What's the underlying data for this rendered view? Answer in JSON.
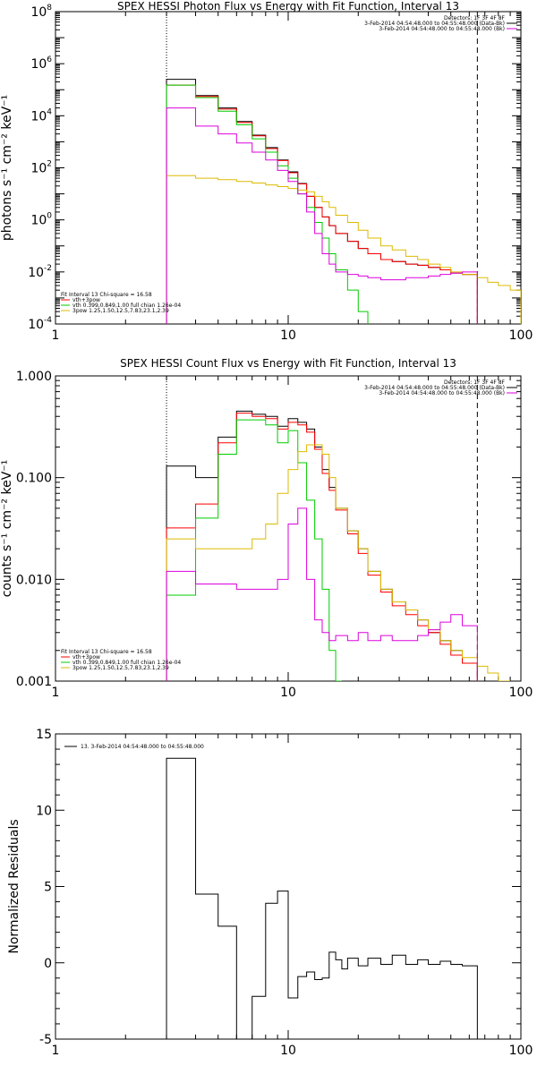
{
  "chart_data": [
    {
      "type": "line",
      "title": "SPEX HESSI Photon Flux vs Energy with Fit Function, Interval 13",
      "ylabel": "photons s⁻¹ cm⁻² keV⁻¹",
      "xscale": "log",
      "yscale": "log",
      "xlim": [
        1,
        100
      ],
      "ylim": [
        0.0001,
        100000000
      ],
      "xticks": [
        {
          "v": 1,
          "t": "1"
        },
        {
          "v": 10,
          "t": "10"
        },
        {
          "v": 100,
          "t": "100"
        }
      ],
      "yticks": [
        {
          "v": 0.0001,
          "b": "10",
          "e": "-4"
        },
        {
          "v": 0.01,
          "b": "10",
          "e": "-2"
        },
        {
          "v": 1,
          "b": "10",
          "e": "0"
        },
        {
          "v": 100,
          "b": "10",
          "e": "2"
        },
        {
          "v": 10000,
          "b": "10",
          "e": "4"
        },
        {
          "v": 1000000,
          "b": "10",
          "e": "6"
        },
        {
          "v": 100000000,
          "b": "10",
          "e": "8"
        }
      ],
      "dotted_x": 3,
      "dashed_x": 65,
      "legend_right": {
        "header": "Detectors: 1F 3F 4F 8F",
        "lines": [
          {
            "text": "3-Feb-2014 04:54:48.000 to 04:55:48.000 (Data-Bk)",
            "color": "#000000"
          },
          {
            "text": "3-Feb-2014 04:54:48.000 to 04:55:48.000 (Bk)",
            "color": "#dd00dd"
          }
        ]
      },
      "legend_left": {
        "header": "Fit Interval 13   Chi-square = 16.58",
        "lines": [
          {
            "text": "vth+3pow",
            "color": "#ff0000"
          },
          {
            "text": "vth 0.399,0.849,1.00  full chian 1.26e-04",
            "color": "#00cc00"
          },
          {
            "text": "3pow 1.25,1.50,12.5,7.83,23.1,2.39",
            "color": "#ddbb00"
          }
        ]
      },
      "series": [
        {
          "name": "Data-Bk",
          "color": "#000000",
          "edges": [
            3,
            4,
            5,
            6,
            7,
            8,
            9,
            10,
            11,
            12,
            13,
            14,
            15,
            16,
            18,
            20,
            22,
            25,
            28,
            32,
            36,
            40,
            45,
            50,
            56,
            65
          ],
          "values": [
            250000,
            60000,
            20000,
            6000,
            1800,
            600,
            200,
            70,
            25,
            8,
            3,
            1.3,
            0.6,
            0.3,
            0.15,
            0.08,
            0.05,
            0.03,
            0.025,
            0.02,
            0.018,
            0.015,
            0.012,
            0.009,
            0.008
          ]
        },
        {
          "name": "vth+3pow",
          "color": "#ff0000",
          "edges": [
            3,
            4,
            5,
            6,
            7,
            8,
            9,
            10,
            11,
            12,
            13,
            14,
            15,
            16,
            18,
            20,
            22,
            25,
            28,
            32,
            36,
            40,
            45,
            50,
            56,
            65
          ],
          "values": [
            150000,
            55000,
            18000,
            5500,
            1700,
            550,
            190,
            65,
            24,
            8,
            3,
            1.3,
            0.6,
            0.3,
            0.15,
            0.08,
            0.05,
            0.03,
            0.025,
            0.02,
            0.018,
            0.015,
            0.012,
            0.009,
            0.008
          ]
        },
        {
          "name": "vth",
          "color": "#00cc00",
          "edges": [
            3,
            4,
            5,
            6,
            7,
            8,
            9,
            10,
            11,
            12,
            13,
            14,
            15,
            16,
            18,
            20,
            22
          ],
          "values": [
            150000,
            50000,
            15000,
            4500,
            1300,
            400,
            120,
            40,
            10,
            3,
            0.8,
            0.2,
            0.05,
            0.012,
            0.002,
            0.0003
          ]
        },
        {
          "name": "3pow",
          "color": "#ddbb00",
          "edges": [
            3,
            4,
            5,
            6,
            7,
            8,
            9,
            10,
            11,
            12,
            13,
            14,
            15,
            16,
            18,
            20,
            22,
            25,
            28,
            32,
            36,
            40,
            45,
            50,
            56,
            65,
            72,
            80,
            90,
            100
          ],
          "values": [
            50,
            40,
            35,
            30,
            26,
            22,
            19,
            16,
            14,
            12,
            8,
            5,
            3,
            1.5,
            0.8,
            0.4,
            0.2,
            0.1,
            0.07,
            0.04,
            0.03,
            0.02,
            0.015,
            0.01,
            0.008,
            0.006,
            0.004,
            0.003,
            0.002
          ]
        },
        {
          "name": "Bk",
          "color": "#dd00dd",
          "edges": [
            3,
            4,
            5,
            6,
            7,
            8,
            9,
            10,
            11,
            12,
            13,
            14,
            15,
            16,
            18,
            20,
            22,
            25,
            28,
            32,
            36,
            40,
            45,
            50,
            56,
            65
          ],
          "values": [
            20000,
            4000,
            2000,
            900,
            400,
            200,
            80,
            30,
            10,
            2,
            0.3,
            0.05,
            0.02,
            0.01,
            0.008,
            0.007,
            0.006,
            0.005,
            0.005,
            0.006,
            0.006,
            0.007,
            0.008,
            0.009,
            0.01
          ]
        }
      ]
    },
    {
      "type": "line",
      "title": "SPEX HESSI Count Flux vs Energy with Fit Function, Interval 13",
      "ylabel": "counts s⁻¹ cm⁻² keV⁻¹",
      "xscale": "log",
      "yscale": "log",
      "xlim": [
        1,
        100
      ],
      "ylim": [
        0.001,
        1
      ],
      "xticks": [
        {
          "v": 1,
          "t": "1"
        },
        {
          "v": 10,
          "t": "10"
        },
        {
          "v": 100,
          "t": "100"
        }
      ],
      "yticks": [
        {
          "v": 0.001,
          "t": "0.001"
        },
        {
          "v": 0.01,
          "t": "0.010"
        },
        {
          "v": 0.1,
          "t": "0.100"
        },
        {
          "v": 1,
          "t": "1.000"
        }
      ],
      "dotted_x": 3,
      "dashed_x": 65,
      "legend_right": {
        "header": "Detectors: 1F 3F 4F 8F",
        "lines": [
          {
            "text": "3-Feb-2014 04:54:48.000 to 04:55:48.000 (Data-Bk)",
            "color": "#000000"
          },
          {
            "text": "3-Feb-2014 04:54:48.000 to 04:55:48.000 (Bk)",
            "color": "#dd00dd"
          }
        ]
      },
      "legend_left": {
        "header": "Fit Interval 13   Chi-square = 16.58",
        "lines": [
          {
            "text": "vth+3pow",
            "color": "#ff0000"
          },
          {
            "text": "vth 0.399,0.849,1.00  full chian 1.26e-04",
            "color": "#00cc00"
          },
          {
            "text": "3pow 1.25,1.50,12.5,7.83,23.1,2.39",
            "color": "#ddbb00"
          }
        ]
      },
      "series": [
        {
          "name": "Data-Bk",
          "color": "#000000",
          "edges": [
            3,
            4,
            5,
            6,
            7,
            8,
            9,
            10,
            11,
            12,
            13,
            14,
            15,
            16,
            18,
            20,
            22,
            25,
            28,
            32,
            36,
            40,
            45,
            50,
            56,
            65
          ],
          "values": [
            0.13,
            0.1,
            0.25,
            0.45,
            0.42,
            0.4,
            0.32,
            0.38,
            0.35,
            0.3,
            0.2,
            0.12,
            0.08,
            0.05,
            0.03,
            0.02,
            0.012,
            0.008,
            0.006,
            0.005,
            0.004,
            0.003,
            0.0025,
            0.002,
            0.0015
          ]
        },
        {
          "name": "vth+3pow",
          "color": "#ff0000",
          "edges": [
            3,
            4,
            5,
            6,
            7,
            8,
            9,
            10,
            11,
            12,
            13,
            14,
            15,
            16,
            18,
            20,
            22,
            25,
            28,
            32,
            36,
            40,
            45,
            50,
            56,
            65
          ],
          "values": [
            0.032,
            0.055,
            0.22,
            0.43,
            0.4,
            0.38,
            0.3,
            0.35,
            0.33,
            0.28,
            0.19,
            0.11,
            0.075,
            0.048,
            0.028,
            0.018,
            0.011,
            0.0075,
            0.0055,
            0.0045,
            0.0035,
            0.003,
            0.0023,
            0.0018,
            0.0015
          ]
        },
        {
          "name": "vth",
          "color": "#00cc00",
          "edges": [
            3,
            4,
            5,
            6,
            7,
            8,
            9,
            10,
            11,
            12,
            13,
            14,
            15,
            16,
            17
          ],
          "values": [
            0.007,
            0.04,
            0.17,
            0.37,
            0.37,
            0.33,
            0.22,
            0.29,
            0.14,
            0.06,
            0.025,
            0.008,
            0.002,
            0.0008
          ]
        },
        {
          "name": "3pow",
          "color": "#ddbb00",
          "edges": [
            3,
            4,
            5,
            6,
            7,
            8,
            9,
            10,
            11,
            12,
            13,
            14,
            15,
            16,
            18,
            20,
            22,
            25,
            28,
            32,
            36,
            40,
            45,
            50,
            56,
            65,
            72,
            80,
            90
          ],
          "values": [
            0.025,
            0.02,
            0.02,
            0.02,
            0.025,
            0.035,
            0.07,
            0.12,
            0.18,
            0.21,
            0.21,
            0.17,
            0.1,
            0.05,
            0.03,
            0.02,
            0.012,
            0.008,
            0.006,
            0.005,
            0.004,
            0.0032,
            0.0025,
            0.002,
            0.0017,
            0.0014,
            0.0012,
            0.001
          ]
        },
        {
          "name": "Bk",
          "color": "#dd00dd",
          "edges": [
            3,
            4,
            5,
            6,
            7,
            8,
            9,
            10,
            11,
            12,
            13,
            14,
            15,
            16,
            18,
            20,
            22,
            25,
            28,
            32,
            36,
            40,
            45,
            50,
            56,
            65
          ],
          "values": [
            0.012,
            0.009,
            0.009,
            0.008,
            0.008,
            0.008,
            0.01,
            0.035,
            0.05,
            0.01,
            0.004,
            0.003,
            0.0025,
            0.0028,
            0.0025,
            0.003,
            0.0025,
            0.0028,
            0.0025,
            0.0025,
            0.0028,
            0.0032,
            0.0038,
            0.0045,
            0.0035
          ]
        }
      ]
    },
    {
      "type": "line",
      "title": "",
      "ylabel": "Normalized Residuals",
      "xscale": "log",
      "yscale": "linear",
      "xlim": [
        1,
        100
      ],
      "ylim": [
        -5,
        15
      ],
      "xticks": [
        {
          "v": 1,
          "t": "1"
        },
        {
          "v": 10,
          "t": "10"
        },
        {
          "v": 100,
          "t": "100"
        }
      ],
      "yticks": [
        {
          "v": -5,
          "t": "-5"
        },
        {
          "v": 0,
          "t": "0"
        },
        {
          "v": 5,
          "t": "5"
        },
        {
          "v": 10,
          "t": "10"
        },
        {
          "v": 15,
          "t": "15"
        }
      ],
      "legend_left_top": {
        "lines": [
          {
            "text": "13.  3-Feb-2014 04:54:48.000 to 04:55:48.000",
            "color": "#000000"
          }
        ]
      },
      "series": [
        {
          "name": "Residuals",
          "color": "#000000",
          "edges": [
            3,
            4,
            5,
            6,
            6.5,
            7,
            8,
            9,
            10,
            11,
            12,
            13,
            14,
            15,
            16,
            17,
            18,
            20,
            22,
            25,
            28,
            32,
            36,
            40,
            45,
            50,
            56,
            65
          ],
          "values": [
            13.4,
            4.5,
            2.4,
            -5.2,
            -5.2,
            -2.2,
            3.9,
            4.7,
            -2.3,
            -0.9,
            -0.6,
            -1.1,
            -1.0,
            0.7,
            0.2,
            -0.4,
            0.3,
            -0.2,
            0.3,
            -0.1,
            0.5,
            -0.1,
            0.2,
            -0.1,
            0.1,
            -0.1,
            -0.2
          ]
        }
      ]
    }
  ]
}
